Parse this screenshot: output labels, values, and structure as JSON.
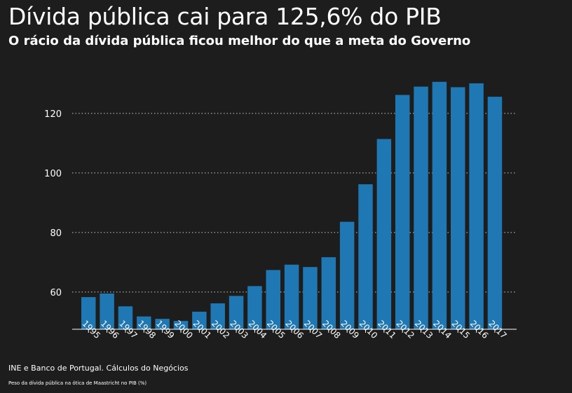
{
  "header": {
    "title": "Dívida pública cai para 125,6% do PIB",
    "subtitle": "O rácio da dívida pública ficou melhor do que a meta do Governo"
  },
  "footer": {
    "source": "INE e Banco de Portugal. Cálculos do Negócios",
    "note": "Peso da dívida pública na ótica de Maastricht no PIB (%)"
  },
  "colors": {
    "background": "#1d1d1d",
    "bar": "#1f77b4",
    "text": "#ffffff",
    "grid": "#cccccc"
  },
  "chart_data": {
    "type": "bar",
    "categories": [
      "1995",
      "1996",
      "1997",
      "1998",
      "1999",
      "2000",
      "2001",
      "2002",
      "2003",
      "2004",
      "2005",
      "2006",
      "2007",
      "2008",
      "2009",
      "2010",
      "2011",
      "2012",
      "2013",
      "2014",
      "2015",
      "2016",
      "2017"
    ],
    "values": [
      58.3,
      59.5,
      55.2,
      51.8,
      51.0,
      50.3,
      53.4,
      56.2,
      58.7,
      62.0,
      67.4,
      69.2,
      68.4,
      71.7,
      83.6,
      96.2,
      111.4,
      126.2,
      129.0,
      130.6,
      128.8,
      130.1,
      125.6
    ],
    "yticks": [
      60,
      80,
      100,
      120
    ],
    "ylim": [
      47.5,
      135
    ],
    "grid": "horizontal dotted",
    "legend": "none"
  }
}
